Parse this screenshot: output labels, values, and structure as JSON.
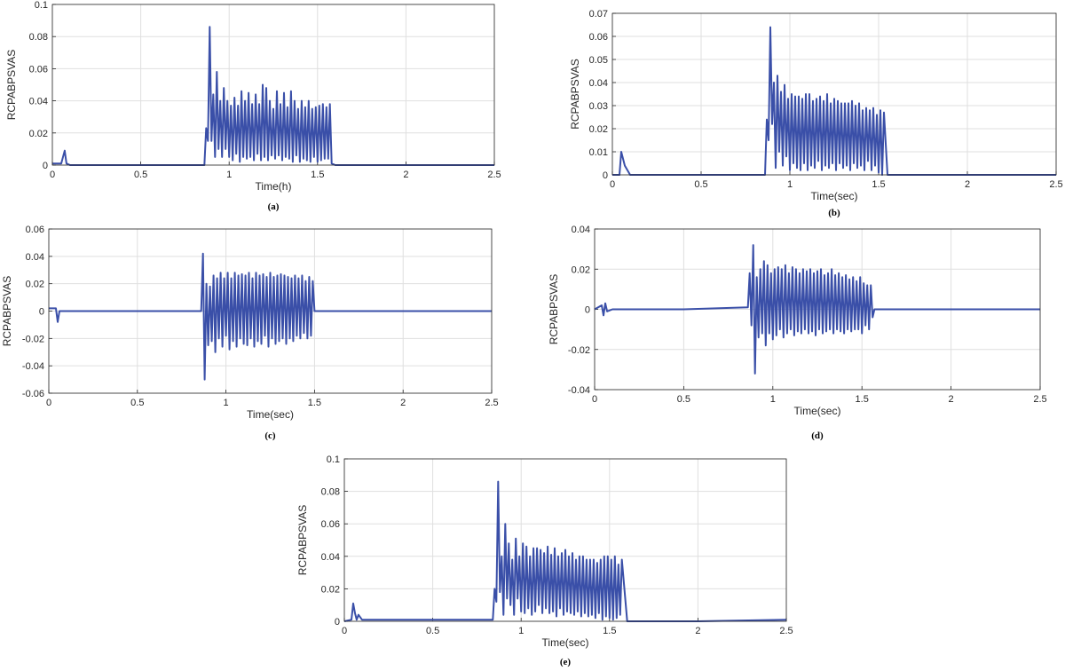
{
  "chart_data": [
    {
      "type": "line",
      "caption": "(a)",
      "xlabel": "Time(h)",
      "ylabel": "RCPABPSVAS",
      "xlim": [
        0,
        2.5
      ],
      "ylim": [
        0,
        0.1
      ],
      "xticks": [
        "0",
        "0.5",
        "1",
        "1.5",
        "2",
        "2.5"
      ],
      "yticks": [
        "0",
        "0.02",
        "0.04",
        "0.06",
        "0.08",
        "0.1"
      ],
      "grid": true,
      "series": [
        {
          "color": "#3a4fa8",
          "x": [
            0,
            0.05,
            0.07,
            0.08,
            0.1,
            0.5,
            0.86,
            0.87,
            0.88,
            0.89,
            0.9,
            0.91,
            0.92,
            0.93,
            0.94,
            0.95,
            0.96,
            0.97,
            0.98,
            0.99,
            1.0,
            1.01,
            1.02,
            1.03,
            1.04,
            1.05,
            1.06,
            1.07,
            1.08,
            1.09,
            1.1,
            1.11,
            1.12,
            1.13,
            1.14,
            1.15,
            1.16,
            1.17,
            1.18,
            1.19,
            1.2,
            1.21,
            1.22,
            1.23,
            1.24,
            1.25,
            1.26,
            1.27,
            1.28,
            1.29,
            1.3,
            1.31,
            1.32,
            1.33,
            1.34,
            1.35,
            1.36,
            1.37,
            1.38,
            1.39,
            1.4,
            1.41,
            1.42,
            1.43,
            1.44,
            1.45,
            1.46,
            1.47,
            1.48,
            1.49,
            1.5,
            1.51,
            1.52,
            1.53,
            1.54,
            1.55,
            1.56,
            1.57,
            1.58,
            1.6,
            2.0,
            2.5
          ],
          "y": [
            0.001,
            0.001,
            0.009,
            0.001,
            0,
            0,
            0,
            0.023,
            0.015,
            0.086,
            0.015,
            0.044,
            0.005,
            0.058,
            0.01,
            0.04,
            0.005,
            0.048,
            0.01,
            0.04,
            0.005,
            0.037,
            0.003,
            0.042,
            0.007,
            0.037,
            0.002,
            0.046,
            0.005,
            0.04,
            0.004,
            0.045,
            0.005,
            0.038,
            0.003,
            0.044,
            0.007,
            0.038,
            0.003,
            0.05,
            0.005,
            0.048,
            0.003,
            0.04,
            0.006,
            0.035,
            0.004,
            0.046,
            0.006,
            0.038,
            0.003,
            0.045,
            0.005,
            0.036,
            0.004,
            0.046,
            0.002,
            0.04,
            0.006,
            0.035,
            0.002,
            0.04,
            0.004,
            0.036,
            0.003,
            0.04,
            0.002,
            0.035,
            0.005,
            0.036,
            0.002,
            0.037,
            0.003,
            0.038,
            0.004,
            0.036,
            0.004,
            0.038,
            0.001,
            0,
            0,
            0
          ]
        }
      ]
    },
    {
      "type": "line",
      "caption": "(b)",
      "xlabel": "Time(sec)",
      "ylabel": "RCPABPSVAS",
      "xlim": [
        0,
        2.5
      ],
      "ylim": [
        0,
        0.07
      ],
      "xticks": [
        "0",
        "0.5",
        "1",
        "1.5",
        "2",
        "2.5"
      ],
      "yticks": [
        "0",
        "0.01",
        "0.02",
        "0.03",
        "0.04",
        "0.05",
        "0.06",
        "0.07"
      ],
      "grid": true,
      "series": [
        {
          "color": "#3a4fa8",
          "x": [
            0,
            0.04,
            0.05,
            0.07,
            0.1,
            0.5,
            0.86,
            0.87,
            0.88,
            0.89,
            0.9,
            0.91,
            0.92,
            0.93,
            0.94,
            0.95,
            0.96,
            0.97,
            0.98,
            0.99,
            1.0,
            1.01,
            1.02,
            1.03,
            1.04,
            1.05,
            1.06,
            1.07,
            1.08,
            1.09,
            1.1,
            1.11,
            1.12,
            1.13,
            1.14,
            1.15,
            1.16,
            1.17,
            1.18,
            1.19,
            1.2,
            1.21,
            1.22,
            1.23,
            1.24,
            1.25,
            1.26,
            1.27,
            1.28,
            1.29,
            1.3,
            1.31,
            1.32,
            1.33,
            1.34,
            1.35,
            1.36,
            1.37,
            1.38,
            1.39,
            1.4,
            1.41,
            1.42,
            1.43,
            1.44,
            1.45,
            1.46,
            1.47,
            1.48,
            1.49,
            1.5,
            1.51,
            1.52,
            1.53,
            1.55,
            2.0,
            2.5
          ],
          "y": [
            0,
            0,
            0.01,
            0.004,
            0,
            0,
            0,
            0.024,
            0.015,
            0.064,
            0.022,
            0.04,
            0.003,
            0.043,
            0.01,
            0.036,
            0.004,
            0.039,
            0.008,
            0.033,
            0.002,
            0.035,
            0.005,
            0.034,
            0.003,
            0.034,
            0.002,
            0.033,
            0.005,
            0.035,
            0.002,
            0.035,
            0.004,
            0.032,
            0.003,
            0.033,
            0.006,
            0.034,
            0.002,
            0.032,
            0.004,
            0.035,
            0.003,
            0.031,
            0.005,
            0.033,
            0.002,
            0.032,
            0.005,
            0.031,
            0.003,
            0.031,
            0.004,
            0.031,
            0.002,
            0.032,
            0.005,
            0.03,
            0.003,
            0.031,
            0.004,
            0.028,
            0.002,
            0.029,
            0.006,
            0.028,
            0.002,
            0.029,
            0.004,
            0.026,
            0.001,
            0.028,
            0.0,
            0.027,
            0,
            0,
            0
          ]
        }
      ]
    },
    {
      "type": "line",
      "caption": "(c)",
      "xlabel": "Time(sec)",
      "ylabel": "RCPABPSVAS",
      "xlim": [
        0,
        2.5
      ],
      "ylim": [
        -0.06,
        0.06
      ],
      "xticks": [
        "0",
        "0.5",
        "1",
        "1.5",
        "2",
        "2.5"
      ],
      "yticks": [
        "-0.06",
        "-0.04",
        "-0.02",
        "0",
        "0.02",
        "0.04",
        "0.06"
      ],
      "grid": true,
      "series": [
        {
          "color": "#3a4fa8",
          "x": [
            0,
            0.04,
            0.05,
            0.06,
            0.08,
            0.5,
            0.86,
            0.87,
            0.88,
            0.89,
            0.9,
            0.91,
            0.92,
            0.93,
            0.94,
            0.95,
            0.96,
            0.97,
            0.98,
            0.99,
            1.0,
            1.01,
            1.02,
            1.03,
            1.04,
            1.05,
            1.06,
            1.07,
            1.08,
            1.09,
            1.1,
            1.11,
            1.12,
            1.13,
            1.14,
            1.15,
            1.16,
            1.17,
            1.18,
            1.19,
            1.2,
            1.21,
            1.22,
            1.23,
            1.24,
            1.25,
            1.26,
            1.27,
            1.28,
            1.29,
            1.3,
            1.31,
            1.32,
            1.33,
            1.34,
            1.35,
            1.36,
            1.37,
            1.38,
            1.39,
            1.4,
            1.41,
            1.42,
            1.43,
            1.44,
            1.45,
            1.46,
            1.47,
            1.48,
            1.49,
            1.5,
            1.51,
            2.0,
            2.5
          ],
          "y": [
            0.002,
            0.002,
            -0.008,
            0,
            0,
            0,
            0,
            0.042,
            -0.05,
            0.02,
            -0.025,
            0.018,
            -0.022,
            0.026,
            -0.03,
            0.024,
            -0.02,
            0.028,
            -0.026,
            0.024,
            -0.018,
            0.028,
            -0.028,
            0.024,
            -0.022,
            0.028,
            -0.026,
            0.026,
            -0.02,
            0.027,
            -0.024,
            0.026,
            -0.025,
            0.028,
            -0.02,
            0.024,
            -0.026,
            0.028,
            -0.022,
            0.026,
            -0.024,
            0.027,
            -0.018,
            0.025,
            -0.026,
            0.028,
            -0.02,
            0.025,
            -0.024,
            0.026,
            -0.022,
            0.027,
            -0.02,
            0.026,
            -0.024,
            0.025,
            -0.02,
            0.024,
            -0.022,
            0.026,
            -0.018,
            0.024,
            -0.02,
            0.026,
            -0.016,
            0.022,
            -0.02,
            0.025,
            -0.018,
            0.022,
            0.0,
            0,
            0,
            0
          ]
        }
      ]
    },
    {
      "type": "line",
      "caption": "(d)",
      "xlabel": "Time(sec)",
      "ylabel": "RCPABPSVAS",
      "xlim": [
        0,
        2.5
      ],
      "ylim": [
        -0.04,
        0.04
      ],
      "xticks": [
        "0",
        "0.5",
        "1",
        "1.5",
        "2",
        "2.5"
      ],
      "yticks": [
        "-0.04",
        "-0.02",
        "0",
        "0.02",
        "0.04"
      ],
      "grid": true,
      "series": [
        {
          "color": "#3a4fa8",
          "x": [
            0,
            0.04,
            0.05,
            0.06,
            0.07,
            0.1,
            0.5,
            0.86,
            0.87,
            0.88,
            0.89,
            0.9,
            0.91,
            0.92,
            0.93,
            0.94,
            0.95,
            0.96,
            0.97,
            0.98,
            0.99,
            1.0,
            1.01,
            1.02,
            1.03,
            1.04,
            1.05,
            1.06,
            1.07,
            1.08,
            1.09,
            1.1,
            1.11,
            1.12,
            1.13,
            1.14,
            1.15,
            1.16,
            1.17,
            1.18,
            1.19,
            1.2,
            1.21,
            1.22,
            1.23,
            1.24,
            1.25,
            1.26,
            1.27,
            1.28,
            1.29,
            1.3,
            1.31,
            1.32,
            1.33,
            1.34,
            1.35,
            1.36,
            1.37,
            1.38,
            1.39,
            1.4,
            1.41,
            1.42,
            1.43,
            1.44,
            1.45,
            1.46,
            1.47,
            1.48,
            1.49,
            1.5,
            1.51,
            1.52,
            1.53,
            1.54,
            1.55,
            1.56,
            1.57,
            2.0,
            2.5
          ],
          "y": [
            0,
            0.002,
            -0.003,
            0.003,
            -0.001,
            0,
            0,
            0.001,
            0.018,
            -0.008,
            0.032,
            -0.032,
            0.016,
            -0.014,
            0.02,
            -0.012,
            0.024,
            -0.018,
            0.022,
            -0.012,
            0.018,
            -0.015,
            0.02,
            -0.013,
            0.021,
            -0.01,
            0.02,
            -0.014,
            0.022,
            -0.012,
            0.018,
            -0.01,
            0.021,
            -0.013,
            0.02,
            -0.011,
            0.018,
            -0.012,
            0.02,
            -0.01,
            0.019,
            -0.012,
            0.02,
            -0.011,
            0.018,
            -0.013,
            0.019,
            -0.01,
            0.02,
            -0.012,
            0.017,
            -0.011,
            0.018,
            -0.01,
            0.02,
            -0.012,
            0.017,
            -0.01,
            0.018,
            -0.011,
            0.016,
            -0.012,
            0.017,
            -0.01,
            0.015,
            -0.011,
            0.016,
            -0.01,
            0.014,
            -0.01,
            0.016,
            -0.012,
            0.013,
            -0.008,
            0.012,
            -0.01,
            0.012,
            -0.004,
            0,
            0,
            0
          ]
        }
      ]
    },
    {
      "type": "line",
      "caption": "(e)",
      "xlabel": "Time(sec)",
      "ylabel": "RCPABPSVAS",
      "xlim": [
        0,
        2.5
      ],
      "ylim": [
        0,
        0.1
      ],
      "xticks": [
        "0",
        "0.5",
        "1",
        "1.5",
        "2",
        "2.5"
      ],
      "yticks": [
        "0",
        "0.02",
        "0.04",
        "0.06",
        "0.08",
        "0.1"
      ],
      "grid": true,
      "series": [
        {
          "color": "#3a4fa8",
          "x": [
            0,
            0.04,
            0.05,
            0.06,
            0.07,
            0.08,
            0.1,
            0.5,
            0.84,
            0.85,
            0.86,
            0.87,
            0.88,
            0.89,
            0.9,
            0.91,
            0.92,
            0.93,
            0.94,
            0.95,
            0.96,
            0.97,
            0.98,
            0.99,
            1.0,
            1.01,
            1.02,
            1.03,
            1.04,
            1.05,
            1.06,
            1.07,
            1.08,
            1.09,
            1.1,
            1.11,
            1.12,
            1.13,
            1.14,
            1.15,
            1.16,
            1.17,
            1.18,
            1.19,
            1.2,
            1.21,
            1.22,
            1.23,
            1.24,
            1.25,
            1.26,
            1.27,
            1.28,
            1.29,
            1.3,
            1.31,
            1.32,
            1.33,
            1.34,
            1.35,
            1.36,
            1.37,
            1.38,
            1.39,
            1.4,
            1.41,
            1.42,
            1.43,
            1.44,
            1.45,
            1.46,
            1.47,
            1.48,
            1.49,
            1.5,
            1.51,
            1.52,
            1.53,
            1.54,
            1.55,
            1.56,
            1.57,
            1.6,
            2.0,
            2.5
          ],
          "y": [
            0,
            0.001,
            0.011,
            0.005,
            0.001,
            0.004,
            0.001,
            0.001,
            0.001,
            0.02,
            0.012,
            0.086,
            0.018,
            0.04,
            0.004,
            0.06,
            0.014,
            0.048,
            0.01,
            0.038,
            0.004,
            0.051,
            0.014,
            0.04,
            0.006,
            0.048,
            0.005,
            0.046,
            0.008,
            0.04,
            0.004,
            0.045,
            0.006,
            0.045,
            0.01,
            0.044,
            0.005,
            0.042,
            0.008,
            0.046,
            0.005,
            0.041,
            0.006,
            0.045,
            0.003,
            0.04,
            0.008,
            0.042,
            0.004,
            0.044,
            0.006,
            0.04,
            0.005,
            0.042,
            0.004,
            0.038,
            0.006,
            0.04,
            0.003,
            0.04,
            0.005,
            0.038,
            0.003,
            0.038,
            0.004,
            0.038,
            0.002,
            0.036,
            0.005,
            0.038,
            0.001,
            0.04,
            0.003,
            0.04,
            0.002,
            0.038,
            0.001,
            0.04,
            0.002,
            0.035,
            0.004,
            0.038,
            0.0,
            0,
            0.001
          ]
        }
      ]
    }
  ]
}
